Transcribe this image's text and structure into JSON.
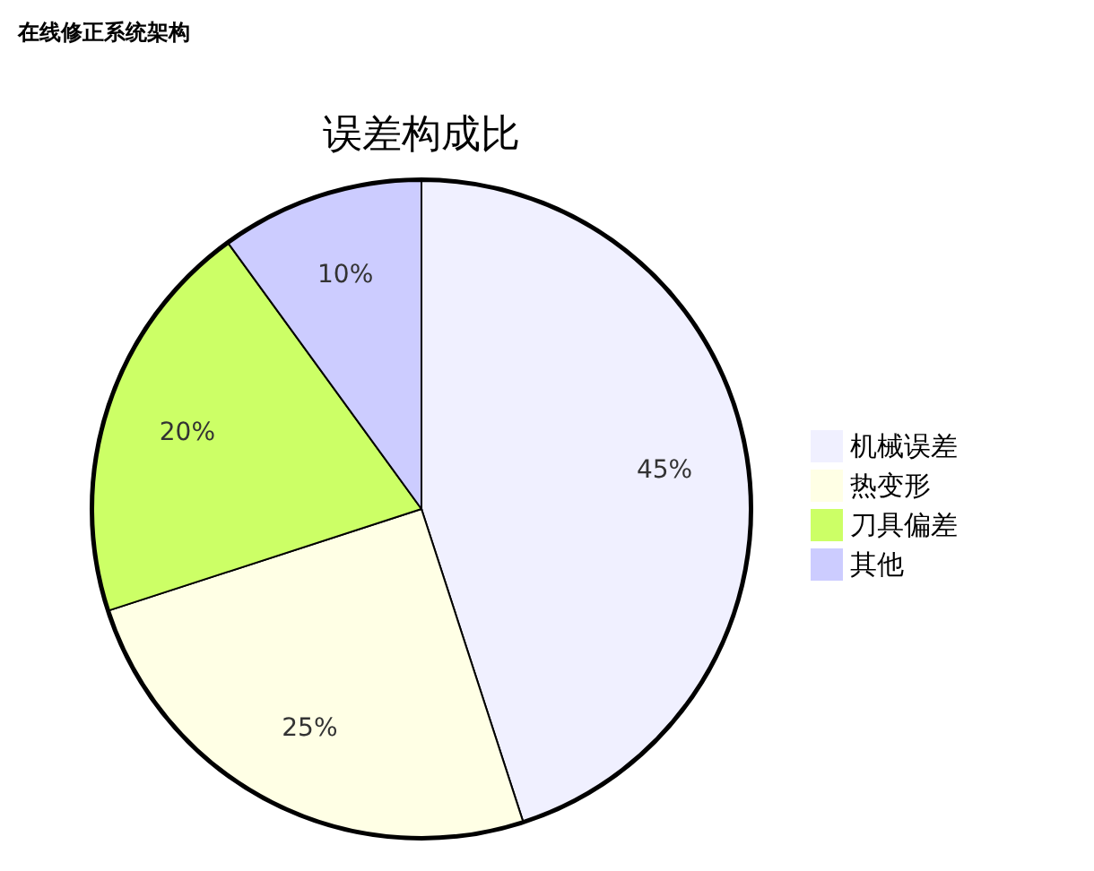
{
  "chart_data": {
    "type": "pie",
    "title": "误差构成比",
    "annotations": [
      "在线修正系统架构"
    ],
    "categories": [
      "机械误差",
      "热变形",
      "刀具偏差",
      "其他"
    ],
    "values": [
      45,
      25,
      20,
      10
    ],
    "colors": [
      "#f0f0ff",
      "#ffffe5",
      "#ccff66",
      "#ccccff"
    ],
    "value_labels": [
      "45%",
      "25%",
      "20%",
      "10%"
    ],
    "legend": "right"
  }
}
